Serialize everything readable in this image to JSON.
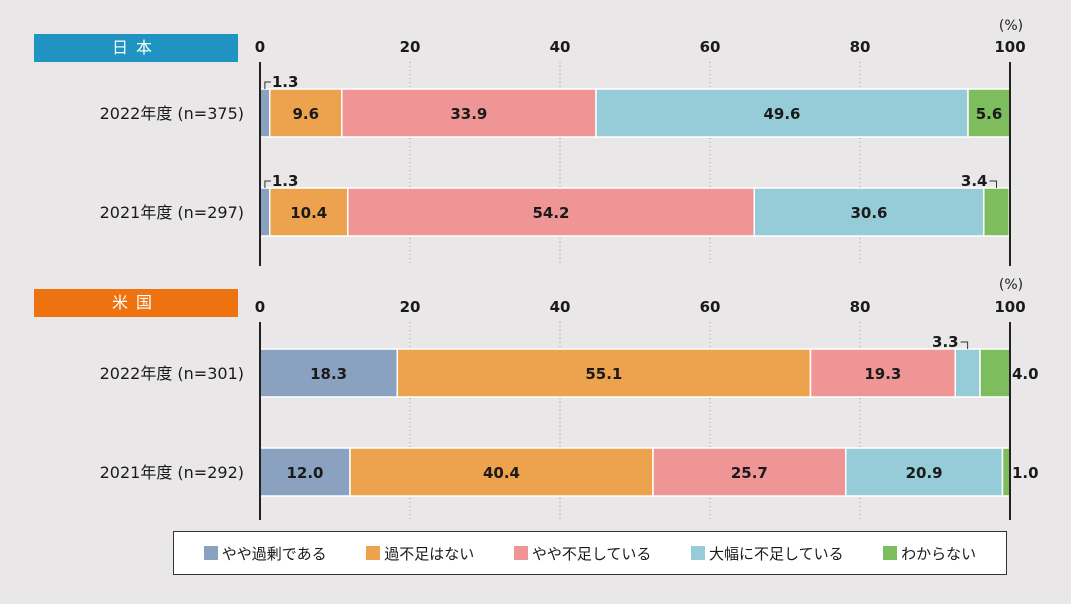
{
  "colors": {
    "slightly_excess": "#8aa1bf",
    "just_right": "#eda24d",
    "slightly_short": "#f09596",
    "greatly_short": "#95ccd8",
    "unknown": "#7dbd5d"
  },
  "legend": [
    {
      "key": "slightly_excess",
      "label": "やや過剰である"
    },
    {
      "key": "just_right",
      "label": "過不足はない"
    },
    {
      "key": "slightly_short",
      "label": "やや不足している"
    },
    {
      "key": "greatly_short",
      "label": "大幅に不足している"
    },
    {
      "key": "unknown",
      "label": "わからない"
    }
  ],
  "chart_data": [
    {
      "type": "bar",
      "orientation": "horizontal-stacked",
      "title": "日本",
      "unit": "(%)",
      "xlim": [
        0,
        100
      ],
      "ticks": [
        0,
        20,
        40,
        60,
        80,
        100
      ],
      "categories": [
        "2022年度 (n=375)",
        "2021年度 (n=297)"
      ],
      "series": [
        {
          "key": "slightly_excess",
          "name": "やや過剰である",
          "values": [
            1.3,
            1.3
          ]
        },
        {
          "key": "just_right",
          "name": "過不足はない",
          "values": [
            9.6,
            10.4
          ]
        },
        {
          "key": "slightly_short",
          "name": "やや不足している",
          "values": [
            33.9,
            54.2
          ]
        },
        {
          "key": "greatly_short",
          "name": "大幅に不足している",
          "values": [
            49.6,
            30.6
          ]
        },
        {
          "key": "unknown",
          "name": "わからない",
          "values": [
            5.6,
            3.4
          ]
        }
      ]
    },
    {
      "type": "bar",
      "orientation": "horizontal-stacked",
      "title": "米国",
      "unit": "(%)",
      "xlim": [
        0,
        100
      ],
      "ticks": [
        0,
        20,
        40,
        60,
        80,
        100
      ],
      "categories": [
        "2022年度 (n=301)",
        "2021年度 (n=292)"
      ],
      "series": [
        {
          "key": "slightly_excess",
          "name": "やや過剰である",
          "values": [
            18.3,
            12.0
          ]
        },
        {
          "key": "just_right",
          "name": "過不足はない",
          "values": [
            55.1,
            40.4
          ]
        },
        {
          "key": "slightly_short",
          "name": "やや不足している",
          "values": [
            19.3,
            25.7
          ]
        },
        {
          "key": "greatly_short",
          "name": "大幅に不足している",
          "values": [
            3.3,
            20.9
          ]
        },
        {
          "key": "unknown",
          "name": "わからない",
          "values": [
            4.0,
            1.0
          ]
        }
      ]
    }
  ]
}
